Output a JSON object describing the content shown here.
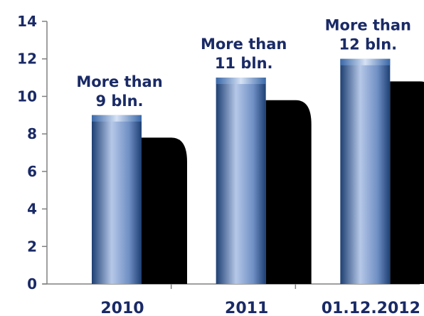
{
  "chart_data": {
    "type": "bar",
    "categories": [
      "2010",
      "2011",
      "01.12.2012"
    ],
    "values": [
      9,
      11,
      12
    ],
    "data_labels": [
      [
        "More than",
        "9 bln."
      ],
      [
        "More than",
        "11 bln."
      ],
      [
        "More than",
        "12 bln."
      ]
    ],
    "ylim": [
      0,
      14
    ],
    "yticks": [
      0,
      2,
      4,
      6,
      8,
      10,
      12,
      14
    ],
    "grid": false,
    "legend": "none",
    "style": "3d-cylinder-with-shadow",
    "colors": {
      "bar_dark": "#1d3f73",
      "bar_light": "#b6c8e8",
      "shadow": "#000000",
      "text": "#1a2a66",
      "axis": "#808080"
    }
  }
}
